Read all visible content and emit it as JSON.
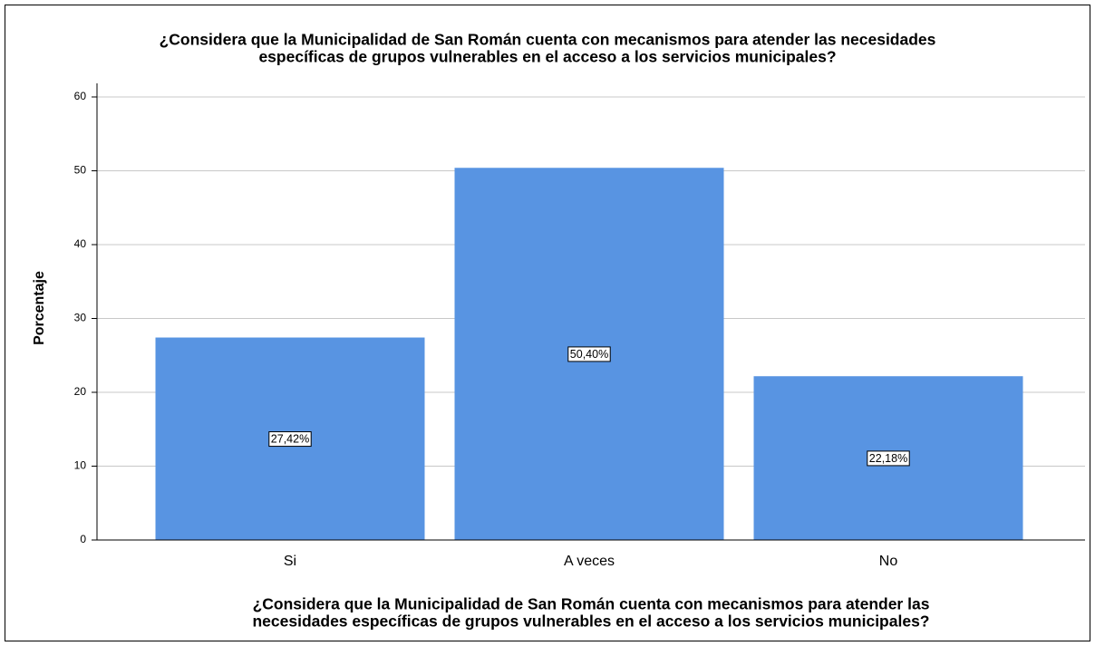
{
  "chart_data": {
    "type": "bar",
    "title": [
      "¿Considera que la Municipalidad de San Román cuenta con mecanismos para atender las necesidades",
      "específicas de grupos vulnerables en el acceso a los servicios municipales?"
    ],
    "x_label": [
      "¿Considera que la Municipalidad de San Román cuenta con mecanismos para atender las",
      "necesidades específicas de grupos vulnerables en el acceso a los servicios municipales?"
    ],
    "y_label": "Porcentaje",
    "categories": [
      "Si",
      "A veces",
      "No"
    ],
    "values": [
      27.42,
      50.4,
      22.18
    ],
    "value_labels": [
      "27,42%",
      "50,40%",
      "22,18%"
    ],
    "color": "#5894e2",
    "ylim": [
      0,
      60
    ],
    "yticks": [
      0,
      10,
      20,
      30,
      40,
      50,
      60
    ],
    "grid": true
  }
}
